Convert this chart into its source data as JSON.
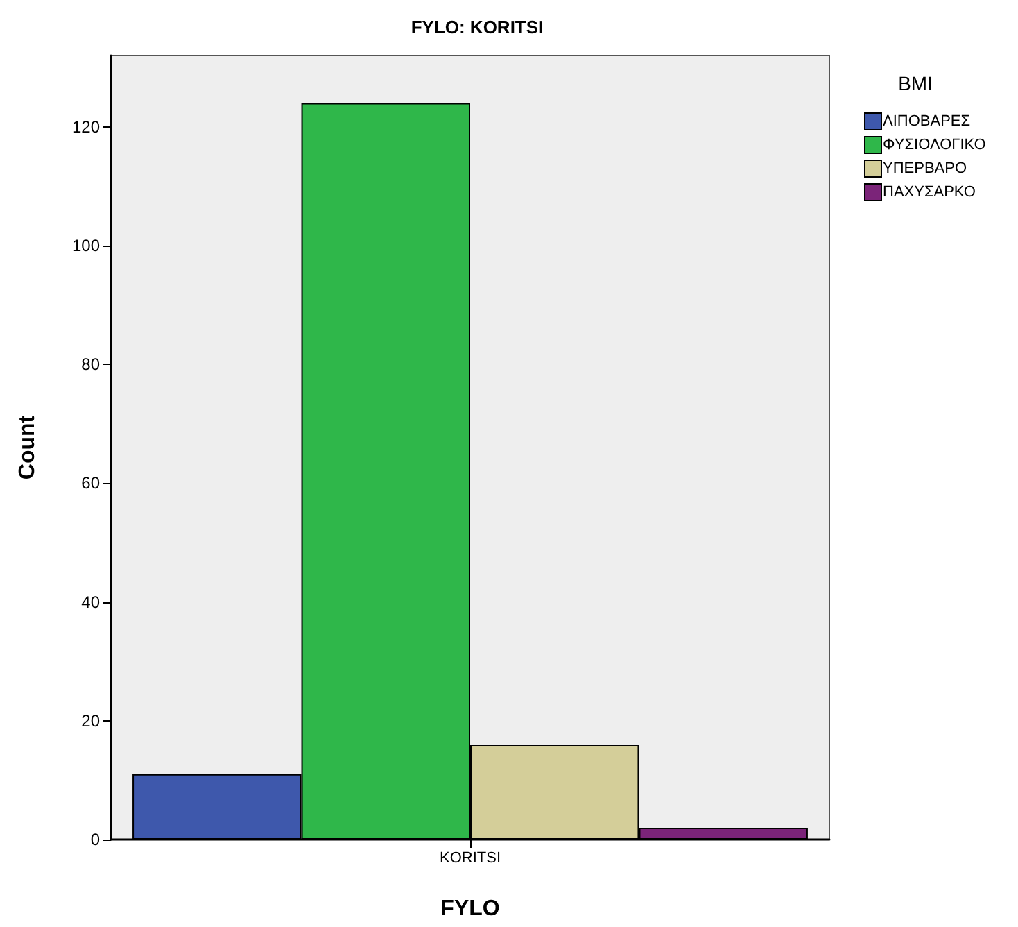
{
  "chart_data": {
    "type": "bar",
    "title": "FYLO: KORITSI",
    "xlabel": "FYLO",
    "ylabel": "Count",
    "legend_title": "BMI",
    "categories": [
      "KORITSI"
    ],
    "series": [
      {
        "name": "ΛΙΠΟΒΑΡΕΣ",
        "color": "#3e58ac",
        "values": [
          11
        ]
      },
      {
        "name": "ΦΥΣΙΟΛΟΓΙΚΟ",
        "color": "#2fb74a",
        "values": [
          124
        ]
      },
      {
        "name": "ΥΠΕΡΒΑΡΟ",
        "color": "#d4ce99",
        "values": [
          16
        ]
      },
      {
        "name": "ΠΑΧΥΣΑΡΚΟ",
        "color": "#7b2479",
        "values": [
          2
        ]
      }
    ],
    "ylim": [
      0,
      132
    ],
    "yticks": [
      0,
      20,
      40,
      60,
      80,
      100,
      120
    ],
    "grid": false,
    "legend": "top right"
  }
}
